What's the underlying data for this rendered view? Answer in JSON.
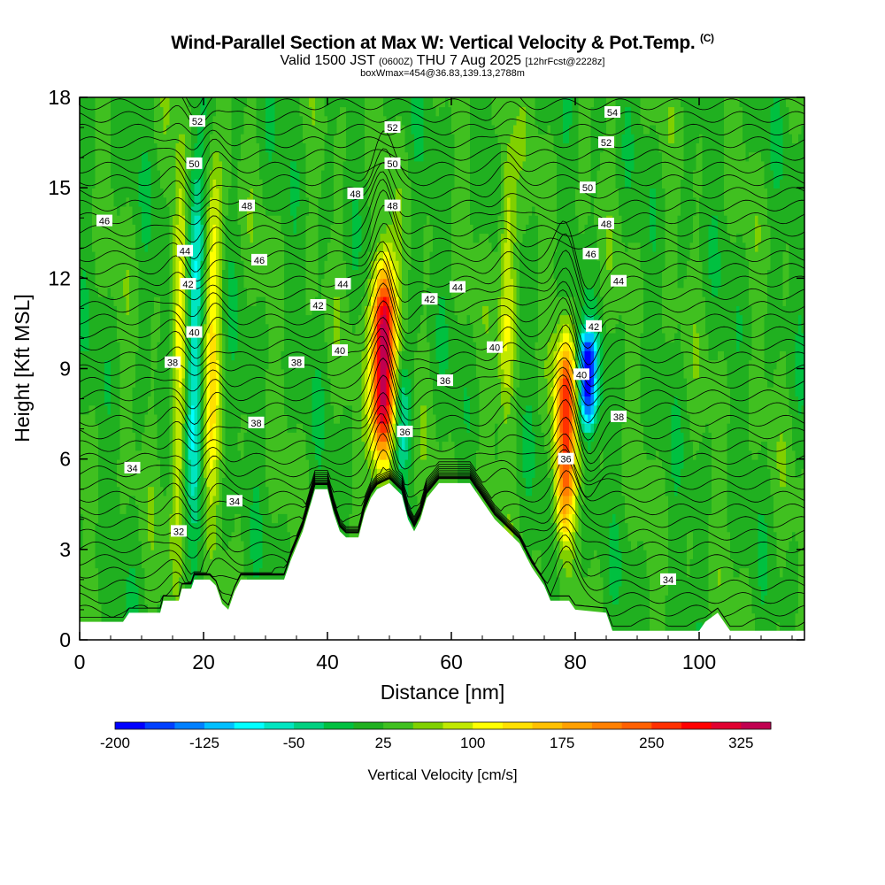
{
  "header": {
    "title": "Wind-Parallel Section at Max W: Vertical Velocity & Pot.Temp.",
    "copyright": "(C)",
    "valid_prefix": "Valid 1500 JST",
    "valid_utc": "(0600Z)",
    "valid_date": "THU 7 Aug 2025",
    "forecast": "[12hrFcst@2228z]",
    "box_info": "boxWmax=454@36.83,139.13,2788m"
  },
  "colors": {
    "scale": [
      "#0000ff",
      "#0040ff",
      "#0080ff",
      "#00bfff",
      "#00ffff",
      "#00e5c0",
      "#00d080",
      "#00c040",
      "#20b020",
      "#40c020",
      "#80d000",
      "#c0e800",
      "#ffff00",
      "#ffe000",
      "#ffc000",
      "#ffa000",
      "#ff8000",
      "#ff6000",
      "#ff3000",
      "#ff0000",
      "#e00030",
      "#c00050",
      "#900070",
      "#600090"
    ]
  },
  "chart_data": {
    "type": "heatmap",
    "title": "Wind-Parallel Section at Max W: Vertical Velocity & Pot.Temp.",
    "xlabel": "Distance [nm]",
    "ylabel": "Height [Kft MSL]",
    "xlim": [
      0,
      117
    ],
    "ylim": [
      0,
      18
    ],
    "x_ticks": [
      "0",
      "20",
      "40",
      "60",
      "80",
      "100"
    ],
    "y_ticks": [
      "0",
      "3",
      "6",
      "9",
      "12",
      "15",
      "18"
    ],
    "colorbar": {
      "label": "Vertical Velocity [cm/s]",
      "min": -200,
      "max": 350,
      "step": 25,
      "tick_labels": [
        "-200",
        "-125",
        "-50",
        "25",
        "100",
        "175",
        "250",
        "325"
      ]
    },
    "terrain": [
      [
        0,
        0.6
      ],
      [
        7,
        0.6
      ],
      [
        8,
        0.9
      ],
      [
        13,
        0.9
      ],
      [
        13.5,
        1.3
      ],
      [
        16,
        1.3
      ],
      [
        16.5,
        1.7
      ],
      [
        18,
        1.7
      ],
      [
        18.5,
        2.0
      ],
      [
        21,
        2.0
      ],
      [
        22,
        1.8
      ],
      [
        23,
        1.2
      ],
      [
        24,
        1.0
      ],
      [
        25,
        1.6
      ],
      [
        26,
        2.0
      ],
      [
        33,
        2.0
      ],
      [
        34,
        2.6
      ],
      [
        36,
        3.6
      ],
      [
        37,
        4.3
      ],
      [
        38,
        5.0
      ],
      [
        40,
        5.0
      ],
      [
        41,
        4.2
      ],
      [
        42,
        3.6
      ],
      [
        43,
        3.4
      ],
      [
        45,
        3.4
      ],
      [
        46,
        4.2
      ],
      [
        47,
        4.7
      ],
      [
        48,
        5.0
      ],
      [
        50,
        5.2
      ],
      [
        52,
        4.8
      ],
      [
        53,
        4.0
      ],
      [
        54,
        3.6
      ],
      [
        55,
        4.0
      ],
      [
        56,
        4.7
      ],
      [
        58,
        5.2
      ],
      [
        63,
        5.2
      ],
      [
        65,
        4.6
      ],
      [
        67,
        4.0
      ],
      [
        69,
        3.6
      ],
      [
        71,
        3.2
      ],
      [
        73,
        2.4
      ],
      [
        75,
        1.8
      ],
      [
        76,
        1.3
      ],
      [
        79,
        1.3
      ],
      [
        80,
        1.0
      ],
      [
        85,
        0.9
      ],
      [
        86,
        0.3
      ],
      [
        100,
        0.3
      ],
      [
        101,
        0.6
      ],
      [
        103,
        0.9
      ],
      [
        104,
        0.6
      ],
      [
        105,
        0.3
      ],
      [
        117,
        0.3
      ]
    ],
    "updrafts": [
      {
        "x": 49,
        "ymin": 4.8,
        "ymax": 13.5,
        "peak_cms": 340,
        "zmax": 9.5
      },
      {
        "x": 78.5,
        "ymin": 2.3,
        "ymax": 11.0,
        "peak_cms": 240,
        "zmax": 8.5
      },
      {
        "x": 21.5,
        "ymin": 2.0,
        "ymax": 18.0,
        "peak_cms": 100,
        "zmax": 12.0
      },
      {
        "x": 16,
        "ymin": 0.8,
        "ymax": 18.0,
        "peak_cms": 90,
        "zmax": 9.0
      },
      {
        "x": 69,
        "ymin": 6.0,
        "ymax": 18.0,
        "peak_cms": 90,
        "zmax": 12.0
      }
    ],
    "downdrafts": [
      {
        "x": 82,
        "ymin": 6.5,
        "ymax": 10.8,
        "peak_cms": -200,
        "zmax": 9.0
      },
      {
        "x": 18.5,
        "ymin": 2.5,
        "ymax": 18.0,
        "peak_cms": -110,
        "zmax": 10.0
      },
      {
        "x": 52,
        "ymin": 5.0,
        "ymax": 10.0,
        "peak_cms": -80,
        "zmax": 7.0
      }
    ],
    "theta_labels": [
      {
        "text": "52",
        "x": 19,
        "y": 17.2
      },
      {
        "text": "50",
        "x": 18.5,
        "y": 15.8
      },
      {
        "text": "48",
        "x": 27,
        "y": 14.4
      },
      {
        "text": "46",
        "x": 4,
        "y": 13.9
      },
      {
        "text": "44",
        "x": 17,
        "y": 12.9
      },
      {
        "text": "46",
        "x": 29,
        "y": 12.6
      },
      {
        "text": "42",
        "x": 17.5,
        "y": 11.8
      },
      {
        "text": "40",
        "x": 18.5,
        "y": 10.2
      },
      {
        "text": "38",
        "x": 15,
        "y": 9.2
      },
      {
        "text": "38",
        "x": 35,
        "y": 9.2
      },
      {
        "text": "38",
        "x": 28.5,
        "y": 7.2
      },
      {
        "text": "34",
        "x": 8.5,
        "y": 5.7
      },
      {
        "text": "34",
        "x": 25,
        "y": 4.6
      },
      {
        "text": "32",
        "x": 16,
        "y": 3.6
      },
      {
        "text": "52",
        "x": 50.5,
        "y": 17.0
      },
      {
        "text": "50",
        "x": 50.5,
        "y": 15.8
      },
      {
        "text": "48",
        "x": 44.5,
        "y": 14.8
      },
      {
        "text": "48",
        "x": 50.5,
        "y": 14.4
      },
      {
        "text": "44",
        "x": 42.5,
        "y": 11.8
      },
      {
        "text": "42",
        "x": 38.5,
        "y": 11.1
      },
      {
        "text": "40",
        "x": 42,
        "y": 9.6
      },
      {
        "text": "42",
        "x": 56.5,
        "y": 11.3
      },
      {
        "text": "44",
        "x": 61,
        "y": 11.7
      },
      {
        "text": "36",
        "x": 59,
        "y": 8.6
      },
      {
        "text": "36",
        "x": 52.5,
        "y": 6.9
      },
      {
        "text": "40",
        "x": 67,
        "y": 9.7
      },
      {
        "text": "54",
        "x": 86,
        "y": 17.5
      },
      {
        "text": "52",
        "x": 85,
        "y": 16.5
      },
      {
        "text": "50",
        "x": 82,
        "y": 15.0
      },
      {
        "text": "48",
        "x": 85,
        "y": 13.8
      },
      {
        "text": "46",
        "x": 82.5,
        "y": 12.8
      },
      {
        "text": "44",
        "x": 87,
        "y": 11.9
      },
      {
        "text": "42",
        "x": 83,
        "y": 10.4
      },
      {
        "text": "40",
        "x": 81,
        "y": 8.8
      },
      {
        "text": "38",
        "x": 87,
        "y": 7.4
      },
      {
        "text": "36",
        "x": 78.5,
        "y": 6.0
      },
      {
        "text": "34",
        "x": 95,
        "y": 2.0
      }
    ]
  }
}
